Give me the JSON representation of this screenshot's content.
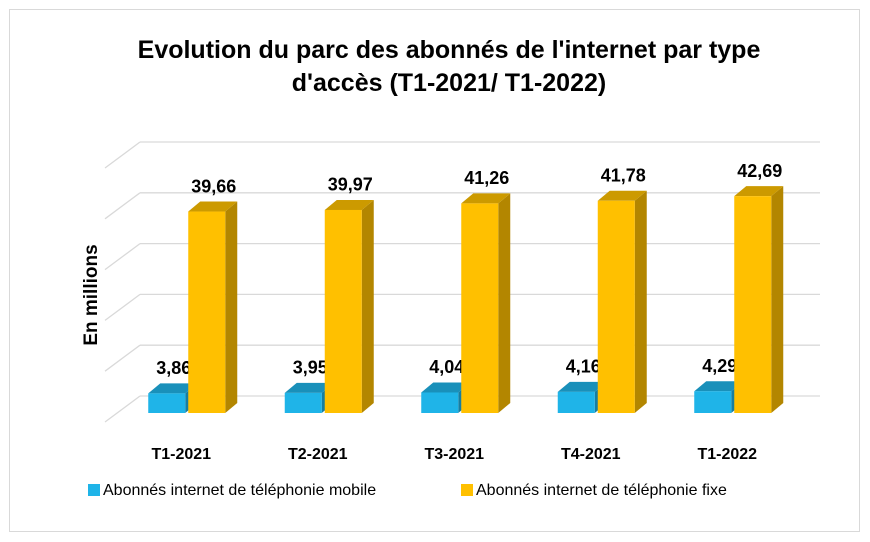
{
  "chart_data": {
    "type": "bar3d",
    "title": "Evolution du parc des abonnés de l'internet par type d'accès (T1-2021/ T1-2022)",
    "y_label": "En millions",
    "categories": [
      "T1-2021",
      "T2-2021",
      "T3-2021",
      "T4-2021",
      "T1-2022"
    ],
    "series": [
      {
        "name": "Abonnés internet de téléphonie mobile",
        "color": "#1fb4e8",
        "values": [
          3.86,
          3.95,
          4.04,
          4.16,
          4.29
        ],
        "value_labels": [
          "3,86",
          "3,95",
          "4,04",
          "4,16",
          "4,29"
        ]
      },
      {
        "name": "Abonnés internet de téléphonie fixe",
        "color": "#ffc000",
        "values": [
          39.66,
          39.97,
          41.26,
          41.78,
          42.69
        ],
        "value_labels": [
          "39,66",
          "39,97",
          "41,26",
          "41,78",
          "42,69"
        ]
      }
    ],
    "ylim": [
      0,
      50
    ],
    "yticks": [
      0,
      10,
      20,
      30,
      40,
      50
    ],
    "grid": true,
    "legend": "bottom"
  }
}
